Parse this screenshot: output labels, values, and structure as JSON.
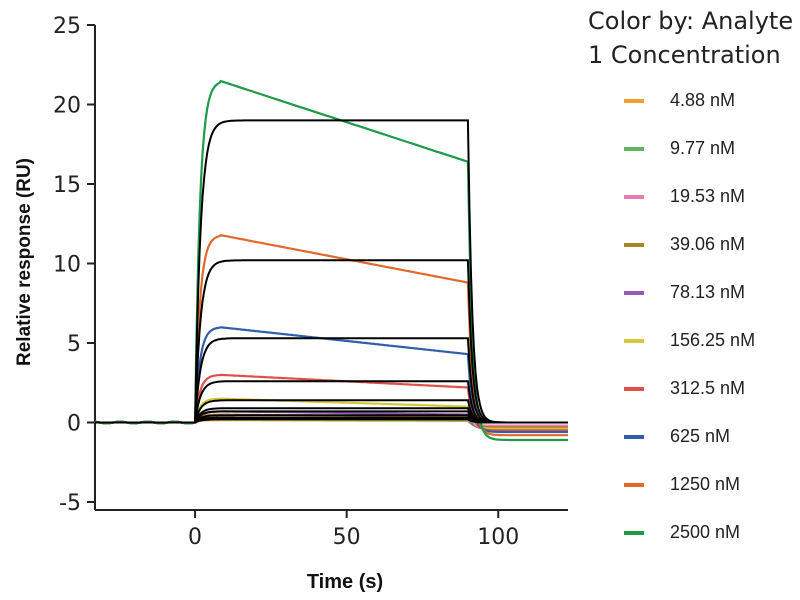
{
  "chart_data": {
    "type": "line",
    "title": "",
    "xlabel": "Time (s)",
    "ylabel": "Relative response (RU)",
    "xlim": [
      -33,
      123
    ],
    "ylim": [
      -5,
      25
    ],
    "xticks": [
      0,
      50,
      100
    ],
    "yticks": [
      -5,
      0,
      5,
      10,
      15,
      20,
      25
    ],
    "grid": false,
    "legend_title": [
      "Color by: Analyte",
      "1 Concentration"
    ],
    "legend_position": "right",
    "association_start_s": 0,
    "dissociation_start_s": 90,
    "series": [
      {
        "name": "4.88 nM",
        "color": "#F0A030",
        "peak": 0.15,
        "end_assoc": 0.1,
        "dissoc_offset": -0.2
      },
      {
        "name": "9.77 nM",
        "color": "#5CB85C",
        "peak": 0.2,
        "end_assoc": 0.15,
        "dissoc_offset": -0.3
      },
      {
        "name": "19.53 nM",
        "color": "#E87BB0",
        "peak": 0.3,
        "end_assoc": 0.2,
        "dissoc_offset": -0.2
      },
      {
        "name": "39.06 nM",
        "color": "#A8862A",
        "peak": 0.5,
        "end_assoc": 0.35,
        "dissoc_offset": -0.3
      },
      {
        "name": "78.13 nM",
        "color": "#9B59B6",
        "peak": 0.7,
        "end_assoc": 0.5,
        "dissoc_offset": -0.4
      },
      {
        "name": "156.25 nM",
        "color": "#D4C93A",
        "peak": 1.5,
        "end_assoc": 1.0,
        "dissoc_offset": -0.4
      },
      {
        "name": "312.5 nM",
        "color": "#E0504A",
        "peak": 3.0,
        "end_assoc": 2.2,
        "dissoc_offset": -0.5
      },
      {
        "name": "625 nM",
        "color": "#2E5FA8",
        "peak": 6.0,
        "end_assoc": 4.3,
        "dissoc_offset": -0.6
      },
      {
        "name": "1250 nM",
        "color": "#E06A2C",
        "peak": 11.8,
        "end_assoc": 8.8,
        "dissoc_offset": -0.8
      },
      {
        "name": "2500 nM",
        "color": "#1E9A4A",
        "peak": 21.5,
        "end_assoc": 16.4,
        "dissoc_offset": -1.1
      }
    ],
    "fit_curves": {
      "color": "#000000",
      "plateaus": [
        0.2,
        0.3,
        0.45,
        0.7,
        0.9,
        1.4,
        2.6,
        5.3,
        10.2,
        19.0
      ]
    }
  }
}
